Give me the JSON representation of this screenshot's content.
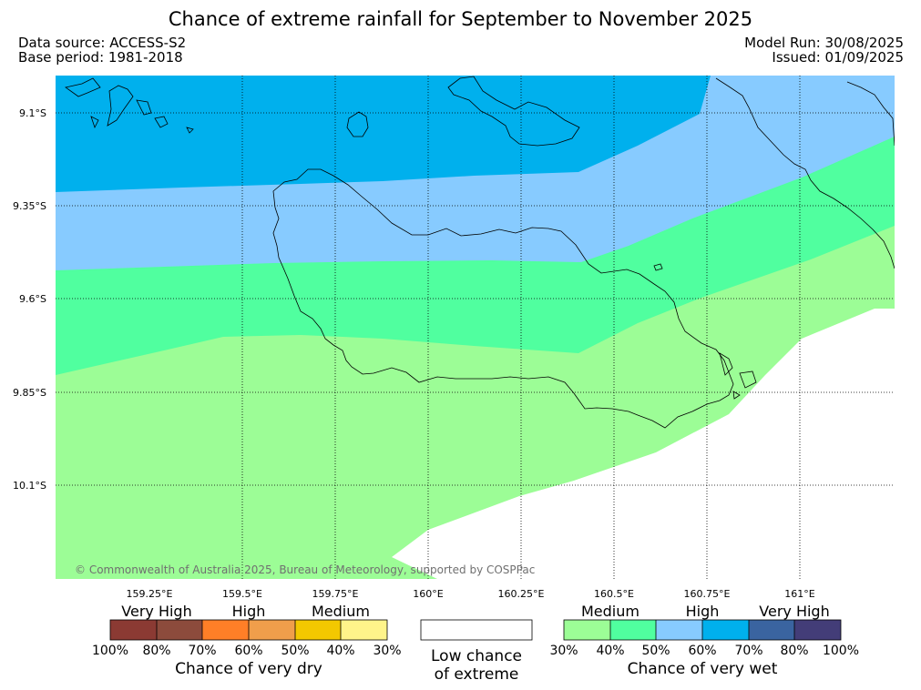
{
  "title": "Chance of extreme rainfall for September to November 2025",
  "meta": {
    "data_source": "Data source: ACCESS-S2",
    "base_period": "Base period: 1981-2018",
    "model_run": "Model Run: 30/08/2025",
    "issued": "Issued: 01/09/2025"
  },
  "map": {
    "lat_labels": [
      "9.1°S",
      "9.35°S",
      "9.6°S",
      "9.85°S",
      "10.1°S"
    ],
    "lon_labels": [
      "159.25°E",
      "159.5°E",
      "159.75°E",
      "160°E",
      "160.25°E",
      "160.5°E",
      "160.75°E",
      "161°E"
    ],
    "copyright": "© Commonwealth of Australia 2025, Bureau of Meteorology, supported by COSPPac",
    "colors": {
      "wet_70_80": "#00b0ed",
      "wet_60_70": "#87cbff",
      "wet_40_50": "#50ff9f",
      "wet_30_40": "#9cfd96",
      "ocean": "#ffffff"
    }
  },
  "legend": {
    "dry": {
      "bands": [
        "Very High",
        "High",
        "Medium"
      ],
      "ticks": [
        "100%",
        "80%",
        "70%",
        "60%",
        "50%",
        "40%",
        "30%"
      ],
      "colors": [
        "#8b3a33",
        "#8c4b3c",
        "#ff7f27",
        "#f09e4b",
        "#f3c800",
        "#fff48a"
      ],
      "title": "Chance of very dry"
    },
    "low": {
      "line1": "Low chance",
      "line2": "of extreme",
      "color": "#ffffff"
    },
    "wet": {
      "bands": [
        "Medium",
        "High",
        "Very High"
      ],
      "ticks": [
        "30%",
        "40%",
        "50%",
        "60%",
        "70%",
        "80%",
        "100%"
      ],
      "colors": [
        "#9cfd96",
        "#50ff9f",
        "#87cbff",
        "#00b0ed",
        "#3a64a0",
        "#433d78"
      ],
      "title": "Chance of very wet"
    }
  }
}
